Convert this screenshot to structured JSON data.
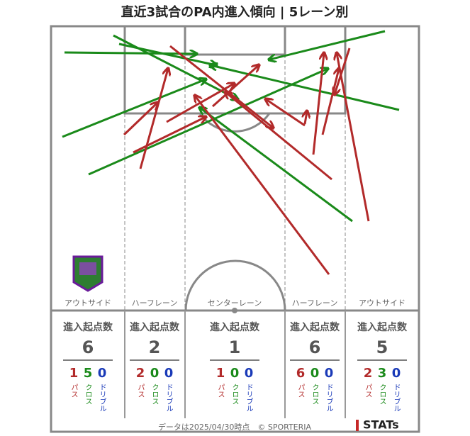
{
  "title": "直近3試合のPA内進入傾向 | 5レーン別",
  "lanes": [
    {
      "name": "アウトサイド",
      "heading": "進入起点数",
      "total": 6,
      "counts": [
        {
          "value": 1,
          "label": "パス"
        },
        {
          "value": 5,
          "label": "クロス"
        },
        {
          "value": 0,
          "label": "ドリブル"
        }
      ]
    },
    {
      "name": "ハーフレーン",
      "heading": "進入起点数",
      "total": 2,
      "counts": [
        {
          "value": 2,
          "label": "パス"
        },
        {
          "value": 0,
          "label": "クロス"
        },
        {
          "value": 0,
          "label": "ドリブル"
        }
      ]
    },
    {
      "name": "センターレーン",
      "heading": "進入起点数",
      "total": 1,
      "counts": [
        {
          "value": 1,
          "label": "パス"
        },
        {
          "value": 0,
          "label": "クロス"
        },
        {
          "value": 0,
          "label": "ドリブル"
        }
      ]
    },
    {
      "name": "ハーフレーン",
      "heading": "進入起点数",
      "total": 6,
      "counts": [
        {
          "value": 6,
          "label": "パス"
        },
        {
          "value": 0,
          "label": "クロス"
        },
        {
          "value": 0,
          "label": "ドリブル"
        }
      ]
    },
    {
      "name": "アウトサイド",
      "heading": "進入起点数",
      "total": 5,
      "counts": [
        {
          "value": 2,
          "label": "パス"
        },
        {
          "value": 3,
          "label": "クロス"
        },
        {
          "value": 0,
          "label": "ドリブル"
        }
      ]
    }
  ],
  "footer": "データは2025/04/30時点　© SPORTERIA",
  "brand": "STATs"
}
